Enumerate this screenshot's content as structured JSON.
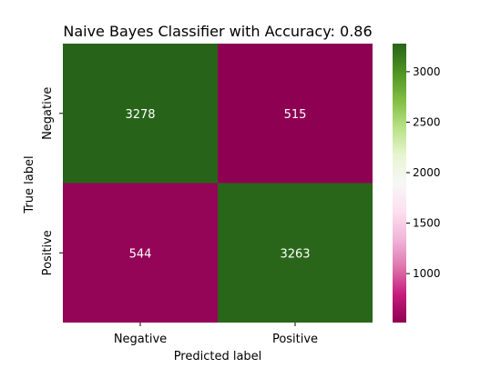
{
  "chart_data": {
    "type": "heatmap",
    "title": "Naive Bayes Classifier with Accuracy: 0.86",
    "xlabel": "Predicted label",
    "ylabel": "True label",
    "x_categories": [
      "Negative",
      "Positive"
    ],
    "y_categories": [
      "Negative",
      "Positive"
    ],
    "values": [
      [
        3278,
        515
      ],
      [
        544,
        3263
      ]
    ],
    "colormap": "PiYG",
    "color_range": [
      515,
      3278
    ],
    "colorbar_ticks": [
      1000,
      1500,
      2000,
      2500,
      3000
    ],
    "colors": {
      "high": "#2a6a1a",
      "low": "#8e0152",
      "text": "#ffffff"
    }
  }
}
